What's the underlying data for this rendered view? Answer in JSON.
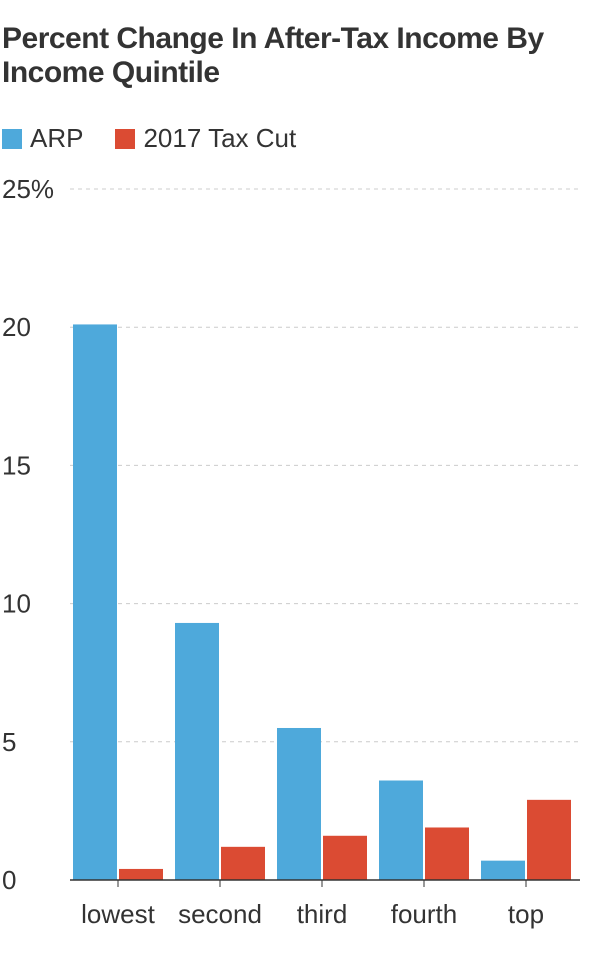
{
  "chart_data": {
    "type": "bar",
    "title": "Percent Change In After-Tax Income By Income Quintile",
    "xlabel": "",
    "ylabel": "",
    "categories": [
      "lowest",
      "second",
      "third",
      "fourth",
      "top"
    ],
    "series": [
      {
        "name": "ARP",
        "color": "#4ea9db",
        "values": [
          20.1,
          9.3,
          5.5,
          3.6,
          0.7
        ]
      },
      {
        "name": "2017 Tax Cut",
        "color": "#db4b33",
        "values": [
          0.4,
          1.2,
          1.6,
          1.9,
          2.9
        ]
      }
    ],
    "ylim": [
      0,
      25
    ],
    "yticks": [
      0,
      5,
      10,
      15,
      20,
      25
    ],
    "ytick_labels": [
      "0",
      "5",
      "10",
      "15",
      "20",
      "25%"
    ],
    "grid": true,
    "legend_position": "top-left"
  }
}
